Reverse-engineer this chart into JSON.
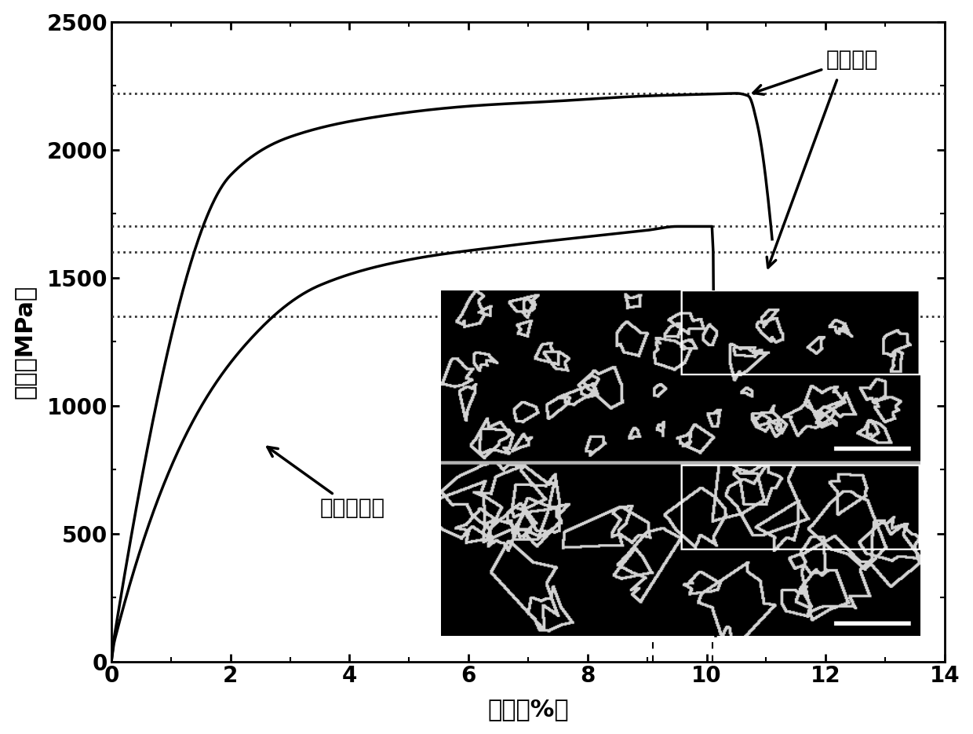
{
  "xlabel": "应变（%）",
  "ylabel": "应力（MPa）",
  "xlim": [
    0,
    14
  ],
  "ylim": [
    0,
    2500
  ],
  "xticks": [
    0,
    2,
    4,
    6,
    8,
    10,
    12,
    14
  ],
  "yticks": [
    0,
    500,
    1000,
    1500,
    2000,
    2500
  ],
  "hlines": [
    2220,
    1700,
    1600,
    1350
  ],
  "label_deformed": "形变合金",
  "label_undeformed": "未形变合金",
  "bg_color": "#ffffff",
  "line_color": "#000000",
  "font_size_label": 22,
  "font_size_tick": 20,
  "font_size_annotation": 20
}
